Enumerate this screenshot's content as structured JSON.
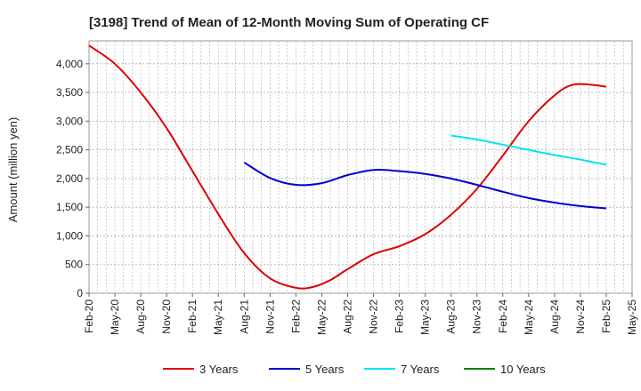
{
  "chart_data": {
    "type": "line",
    "title": "[3198]  Trend of Mean of 12-Month Moving Sum of Operating CF",
    "xlabel": "",
    "ylabel": "Amount (million yen)",
    "ylim": [
      0,
      4400
    ],
    "y_ticks": [
      0,
      500,
      1000,
      1500,
      2000,
      2500,
      3000,
      3500,
      4000
    ],
    "y_tick_labels": [
      "0",
      "500",
      "1,000",
      "1,500",
      "2,000",
      "2,500",
      "3,000",
      "3,500",
      "4,000"
    ],
    "x_tick_labels": [
      "Feb-20",
      "May-20",
      "Aug-20",
      "Nov-20",
      "Feb-21",
      "May-21",
      "Aug-21",
      "Nov-21",
      "Feb-22",
      "May-22",
      "Aug-22",
      "Nov-22",
      "Feb-23",
      "May-23",
      "Aug-23",
      "Nov-23",
      "Feb-24",
      "May-24",
      "Aug-24",
      "Nov-24",
      "Feb-25",
      "May-25"
    ],
    "x_month_count": 63,
    "grid": true,
    "legend_position": "bottom",
    "series": [
      {
        "name": "3 Years",
        "color": "#e00000",
        "start_month_index": 0,
        "points": [
          [
            0,
            4320
          ],
          [
            3,
            4000
          ],
          [
            6,
            3500
          ],
          [
            9,
            2880
          ],
          [
            12,
            2130
          ],
          [
            15,
            1380
          ],
          [
            18,
            700
          ],
          [
            21,
            260
          ],
          [
            24,
            95
          ],
          [
            26,
            110
          ],
          [
            28,
            230
          ],
          [
            30,
            420
          ],
          [
            33,
            680
          ],
          [
            36,
            820
          ],
          [
            39,
            1030
          ],
          [
            42,
            1370
          ],
          [
            45,
            1820
          ],
          [
            48,
            2400
          ],
          [
            51,
            3000
          ],
          [
            54,
            3450
          ],
          [
            56,
            3630
          ],
          [
            58,
            3640
          ],
          [
            60,
            3600
          ]
        ]
      },
      {
        "name": "5 Years",
        "color": "#0000cc",
        "start_month_index": 18,
        "points": [
          [
            18,
            2280
          ],
          [
            21,
            2010
          ],
          [
            24,
            1890
          ],
          [
            27,
            1920
          ],
          [
            30,
            2060
          ],
          [
            33,
            2150
          ],
          [
            36,
            2130
          ],
          [
            39,
            2080
          ],
          [
            42,
            2000
          ],
          [
            45,
            1890
          ],
          [
            48,
            1770
          ],
          [
            51,
            1660
          ],
          [
            54,
            1580
          ],
          [
            57,
            1520
          ],
          [
            60,
            1480
          ]
        ]
      },
      {
        "name": "7 Years",
        "color": "#00e5ee",
        "start_month_index": 42,
        "points": [
          [
            42,
            2750
          ],
          [
            45,
            2680
          ],
          [
            48,
            2590
          ],
          [
            51,
            2500
          ],
          [
            54,
            2410
          ],
          [
            57,
            2330
          ],
          [
            60,
            2240
          ]
        ]
      },
      {
        "name": "10 Years",
        "color": "#008000",
        "start_month_index": null,
        "points": []
      }
    ]
  }
}
